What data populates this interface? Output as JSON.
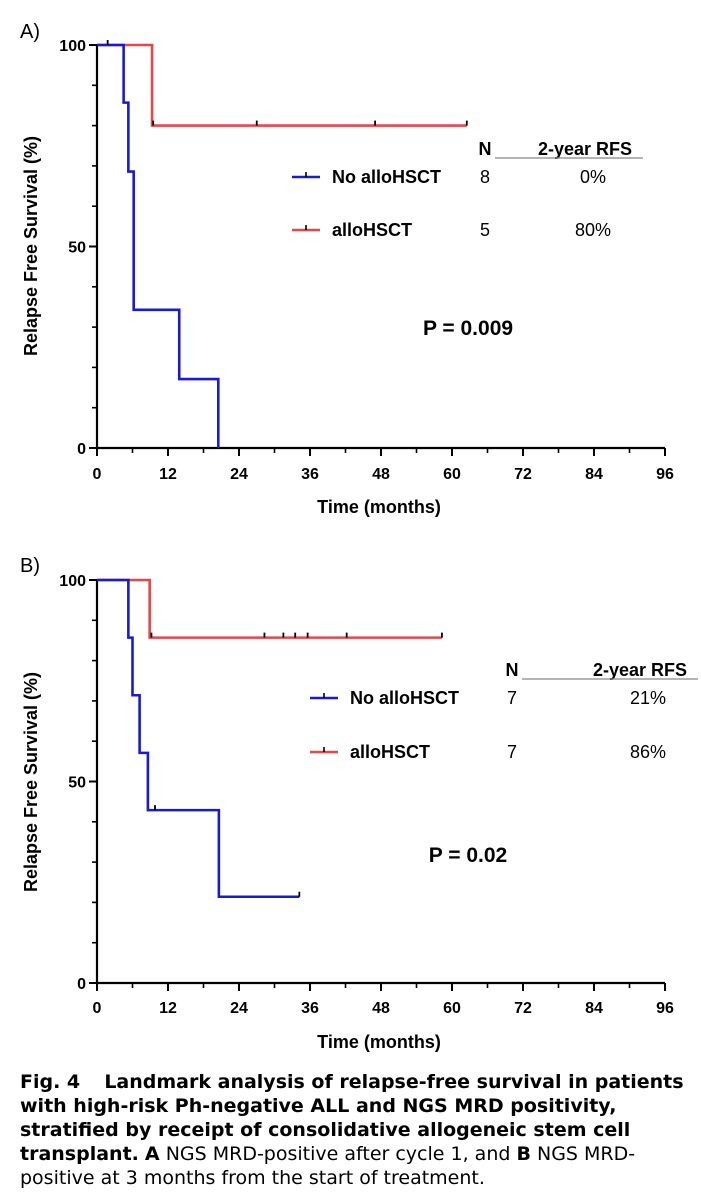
{
  "chart_data": [
    {
      "type": "line",
      "panel_label": "A)",
      "xlabel": "Time (months)",
      "ylabel": "Relapse Free Survival (%)",
      "xlim": [
        0,
        96
      ],
      "ylim": [
        0,
        100
      ],
      "xticks": [
        0,
        12,
        24,
        36,
        48,
        60,
        72,
        84,
        96
      ],
      "yticks": [
        0,
        50,
        100
      ],
      "legend_header": {
        "n": "N",
        "rfs": "2-year RFS"
      },
      "annotation": "P = 0.009",
      "series": [
        {
          "name": "No alloHSCT",
          "color": "#1a1ad6",
          "n": "8",
          "rfs": "0%",
          "steps": [
            [
              0,
              100
            ],
            [
              4.5,
              85.7
            ],
            [
              5.3,
              68.6
            ],
            [
              6.2,
              34.3
            ],
            [
              13.9,
              17.1
            ],
            [
              20.5,
              0
            ]
          ],
          "end": 20.5,
          "censored": [
            [
              1.8,
              100
            ]
          ]
        },
        {
          "name": "alloHSCT",
          "color": "#e8474a",
          "n": "5",
          "rfs": "80%",
          "steps": [
            [
              0,
              100
            ],
            [
              9.3,
              80
            ]
          ],
          "end": 62.5,
          "censored": [
            [
              9.5,
              80
            ],
            [
              27,
              80
            ],
            [
              47,
              80
            ],
            [
              62.5,
              80
            ]
          ]
        }
      ]
    },
    {
      "type": "line",
      "panel_label": "B)",
      "xlabel": "Time (months)",
      "ylabel": "Relapse Free Survival (%)",
      "xlim": [
        0,
        96
      ],
      "ylim": [
        0,
        100
      ],
      "xticks": [
        0,
        12,
        24,
        36,
        48,
        60,
        72,
        84,
        96
      ],
      "yticks": [
        0,
        50,
        100
      ],
      "legend_header": {
        "n": "N",
        "rfs": "2-year RFS"
      },
      "annotation": "P = 0.02",
      "series": [
        {
          "name": "No alloHSCT",
          "color": "#1a1ad6",
          "n": "7",
          "rfs": "21%",
          "steps": [
            [
              0,
              100
            ],
            [
              5.3,
              85.7
            ],
            [
              6,
              71.4
            ],
            [
              7.2,
              57.1
            ],
            [
              8.6,
              42.9
            ],
            [
              20.6,
              21.4
            ]
          ],
          "end": 34.2,
          "censored": [
            [
              9.8,
              42.9
            ],
            [
              34.2,
              21.4
            ]
          ]
        },
        {
          "name": "alloHSCT",
          "color": "#e8474a",
          "n": "7",
          "rfs": "86%",
          "steps": [
            [
              0,
              100
            ],
            [
              8.9,
              85.7
            ]
          ],
          "end": 58.3,
          "censored": [
            [
              9.2,
              85.7
            ],
            [
              28.3,
              85.7
            ],
            [
              31.5,
              85.7
            ],
            [
              33.5,
              85.7
            ],
            [
              35.6,
              85.7
            ],
            [
              42.2,
              85.7
            ],
            [
              58.3,
              85.7
            ]
          ]
        }
      ]
    }
  ],
  "caption": {
    "fig_label": "Fig. 4",
    "title": "Landmark analysis of relapse-free survival in patients with high-risk Ph-negative ALL and NGS MRD positivity, stratified by receipt of consolidative allogeneic stem cell transplant.",
    "panel_a_letter": "A",
    "panel_a_text": "NGS MRD-positive after cycle 1, and",
    "panel_b_letter": "B",
    "panel_b_text": "NGS MRD-positive at 3 months from the start of treatment."
  }
}
